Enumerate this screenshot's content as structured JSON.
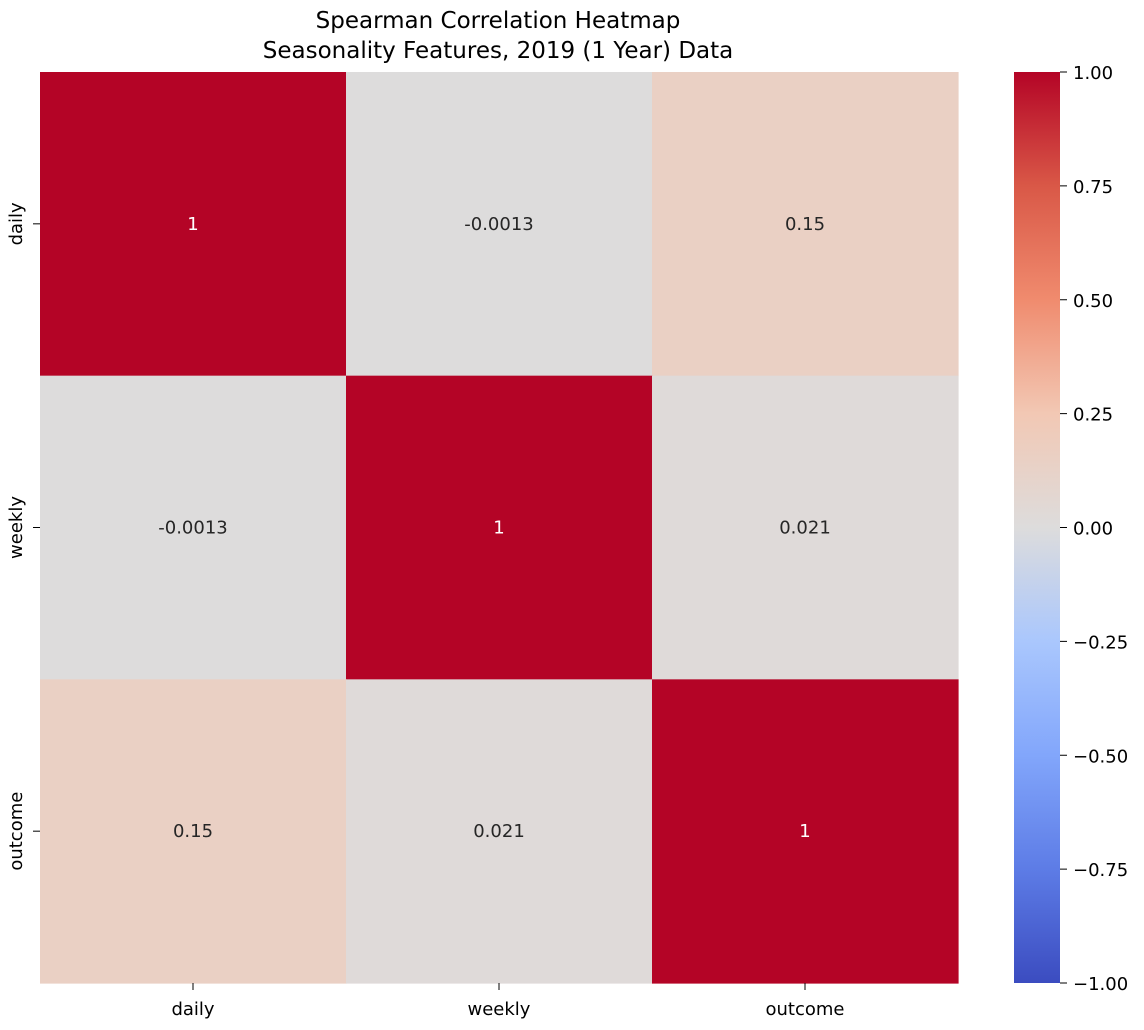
{
  "chart_data": {
    "type": "heatmap",
    "title": "Spearman Correlation Heatmap",
    "subtitle": "Seasonality Features, 2019 (1 Year) Data",
    "x_labels": [
      "daily",
      "weekly",
      "outcome"
    ],
    "y_labels": [
      "daily",
      "weekly",
      "outcome"
    ],
    "values": [
      [
        1,
        -0.0013,
        0.15
      ],
      [
        -0.0013,
        1,
        0.021
      ],
      [
        0.15,
        0.021,
        1
      ]
    ],
    "annotations": [
      [
        "1",
        "-0.0013",
        "0.15"
      ],
      [
        "-0.0013",
        "1",
        "0.021"
      ],
      [
        "0.15",
        "0.021",
        "1"
      ]
    ],
    "colormap": "coolwarm",
    "vmin": -1.0,
    "vmax": 1.0,
    "colorbar_ticks": [
      "1.00",
      "0.75",
      "0.50",
      "0.25",
      "0.00",
      "−0.25",
      "−0.50",
      "−0.75",
      "−1.00"
    ],
    "colorbar_tick_values": [
      1.0,
      0.75,
      0.5,
      0.25,
      0.0,
      -0.25,
      -0.5,
      -0.75,
      -1.0
    ],
    "legend": "colorbar-right",
    "grid": false
  }
}
